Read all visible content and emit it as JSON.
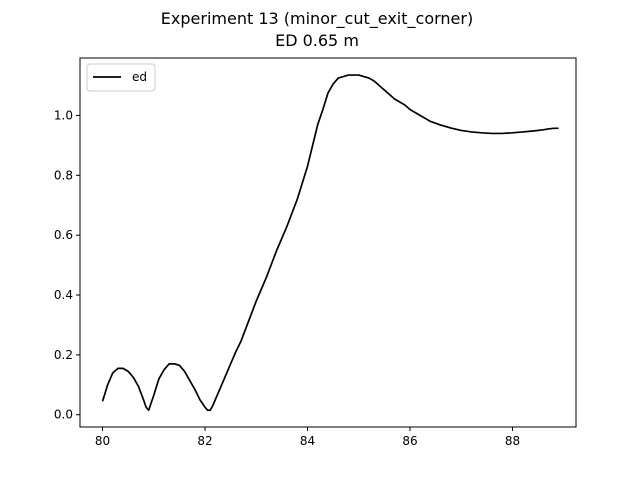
{
  "chart_data": {
    "type": "line",
    "title": "Experiment 13 (minor_cut_exit_corner)",
    "subtitle": "ED 0.65 m",
    "xlabel": "",
    "ylabel": "",
    "xlim": [
      79.56,
      89.24
    ],
    "ylim": [
      -0.041,
      1.192
    ],
    "xticks": [
      80,
      82,
      84,
      86,
      88
    ],
    "yticks": [
      0.0,
      0.2,
      0.4,
      0.6,
      0.8,
      1.0
    ],
    "xtick_labels": [
      "80",
      "82",
      "84",
      "86",
      "88"
    ],
    "ytick_labels": [
      "0.0",
      "0.2",
      "0.4",
      "0.6",
      "0.8",
      "1.0"
    ],
    "grid": false,
    "legend": {
      "position": "top-left",
      "entries": [
        "ed"
      ]
    },
    "series": [
      {
        "name": "ed",
        "color": "#000000",
        "x": [
          80.0,
          80.1,
          80.2,
          80.3,
          80.4,
          80.5,
          80.6,
          80.7,
          80.8,
          80.85,
          80.9,
          80.95,
          81.0,
          81.1,
          81.2,
          81.3,
          81.4,
          81.5,
          81.6,
          81.7,
          81.8,
          81.9,
          82.0,
          82.05,
          82.1,
          82.15,
          82.2,
          82.3,
          82.4,
          82.5,
          82.6,
          82.7,
          82.8,
          82.9,
          83.0,
          83.2,
          83.4,
          83.6,
          83.8,
          84.0,
          84.2,
          84.3,
          84.4,
          84.5,
          84.6,
          84.7,
          84.8,
          84.9,
          85.0,
          85.1,
          85.2,
          85.3,
          85.4,
          85.5,
          85.6,
          85.7,
          85.8,
          85.9,
          86.0,
          86.2,
          86.4,
          86.6,
          86.8,
          87.0,
          87.2,
          87.4,
          87.6,
          87.8,
          88.0,
          88.2,
          88.4,
          88.6,
          88.7,
          88.8,
          88.9
        ],
        "y": [
          0.045,
          0.1,
          0.14,
          0.155,
          0.155,
          0.145,
          0.125,
          0.095,
          0.05,
          0.025,
          0.015,
          0.04,
          0.065,
          0.12,
          0.15,
          0.17,
          0.17,
          0.165,
          0.145,
          0.115,
          0.085,
          0.05,
          0.025,
          0.015,
          0.015,
          0.03,
          0.05,
          0.09,
          0.13,
          0.17,
          0.21,
          0.245,
          0.29,
          0.335,
          0.38,
          0.46,
          0.55,
          0.63,
          0.72,
          0.83,
          0.97,
          1.02,
          1.075,
          1.105,
          1.125,
          1.13,
          1.135,
          1.135,
          1.135,
          1.13,
          1.125,
          1.115,
          1.1,
          1.085,
          1.07,
          1.055,
          1.045,
          1.035,
          1.02,
          1.0,
          0.98,
          0.968,
          0.958,
          0.95,
          0.945,
          0.942,
          0.94,
          0.94,
          0.942,
          0.945,
          0.948,
          0.952,
          0.955,
          0.957,
          0.957
        ]
      }
    ]
  }
}
